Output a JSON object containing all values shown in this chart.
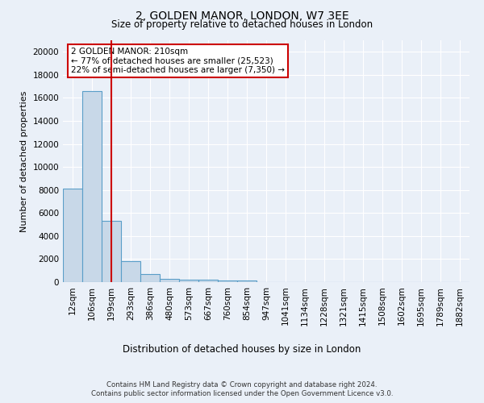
{
  "title_line1": "2, GOLDEN MANOR, LONDON, W7 3EE",
  "title_line2": "Size of property relative to detached houses in London",
  "xlabel": "Distribution of detached houses by size in London",
  "ylabel": "Number of detached properties",
  "categories": [
    "12sqm",
    "106sqm",
    "199sqm",
    "293sqm",
    "386sqm",
    "480sqm",
    "573sqm",
    "667sqm",
    "760sqm",
    "854sqm",
    "947sqm",
    "1041sqm",
    "1134sqm",
    "1228sqm",
    "1321sqm",
    "1415sqm",
    "1508sqm",
    "1602sqm",
    "1695sqm",
    "1789sqm",
    "1882sqm"
  ],
  "values": [
    8100,
    16600,
    5300,
    1850,
    700,
    310,
    220,
    200,
    170,
    150,
    0,
    0,
    0,
    0,
    0,
    0,
    0,
    0,
    0,
    0,
    0
  ],
  "bar_color": "#c8d8e8",
  "bar_edge_color": "#5a9ec8",
  "bar_edge_width": 0.8,
  "vline_x": 2,
  "vline_color": "#cc0000",
  "annotation_text": "2 GOLDEN MANOR: 210sqm\n← 77% of detached houses are smaller (25,523)\n22% of semi-detached houses are larger (7,350) →",
  "annotation_box_color": "white",
  "annotation_box_edge_color": "#cc0000",
  "ylim": [
    0,
    21000
  ],
  "yticks": [
    0,
    2000,
    4000,
    6000,
    8000,
    10000,
    12000,
    14000,
    16000,
    18000,
    20000
  ],
  "bg_color": "#eaf0f8",
  "plot_bg_color": "#eaf0f8",
  "grid_color": "white",
  "footer_line1": "Contains HM Land Registry data © Crown copyright and database right 2024.",
  "footer_line2": "Contains public sector information licensed under the Open Government Licence v3.0."
}
